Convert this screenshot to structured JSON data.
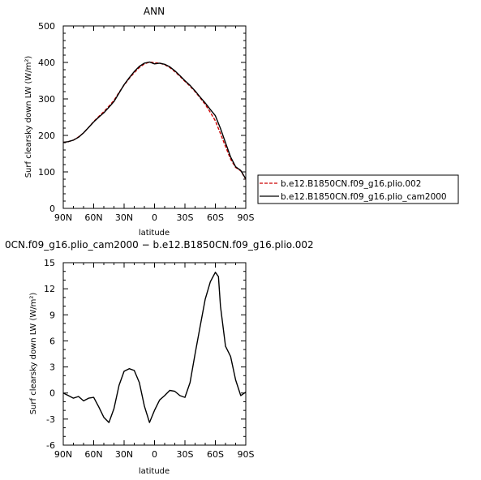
{
  "chart_data": [
    {
      "type": "line",
      "title": "ANN",
      "xlabel": "latitude",
      "ylabel": "Surf clearsky down LW (W/m²)",
      "xlim": [
        90,
        -90
      ],
      "ylim": [
        0,
        500
      ],
      "x_tick_labels": [
        "90N",
        "60N",
        "30N",
        "0",
        "30S",
        "60S",
        "90S"
      ],
      "y_tick_labels": [
        "0",
        "100",
        "200",
        "300",
        "400",
        "500"
      ],
      "legend_position": "right",
      "series": [
        {
          "name": "b.e12.B1850CN.f09_g16.plio.002",
          "color": "#cc0000",
          "style": "dashed",
          "x": [
            90,
            85,
            80,
            75,
            70,
            65,
            60,
            55,
            50,
            45,
            40,
            35,
            30,
            25,
            20,
            15,
            10,
            5,
            0,
            -5,
            -10,
            -15,
            -20,
            -25,
            -30,
            -35,
            -40,
            -45,
            -50,
            -55,
            -60,
            -65,
            -70,
            -75,
            -80,
            -85,
            -90
          ],
          "values": [
            181,
            183,
            187,
            196,
            207,
            222,
            238,
            252,
            265,
            280,
            296,
            318,
            338,
            356,
            372,
            386,
            396,
            401,
            399,
            398,
            394,
            386,
            375,
            362,
            348,
            335,
            320,
            303,
            285,
            263,
            240,
            205,
            170,
            135,
            112,
            103,
            80
          ]
        },
        {
          "name": "b.e12.B1850CN.f09_g16.plio_cam2000",
          "color": "#000000",
          "style": "solid",
          "x": [
            90,
            85,
            80,
            75,
            70,
            65,
            60,
            55,
            50,
            45,
            40,
            35,
            30,
            25,
            20,
            15,
            10,
            5,
            0,
            -5,
            -10,
            -15,
            -20,
            -25,
            -30,
            -35,
            -40,
            -45,
            -50,
            -55,
            -60,
            -65,
            -70,
            -75,
            -80,
            -85,
            -90
          ],
          "values": [
            181,
            183,
            187,
            195,
            207,
            222,
            237,
            250,
            262,
            277,
            293,
            316,
            339,
            358,
            375,
            389,
            398,
            401,
            396,
            398,
            395,
            388,
            377,
            364,
            350,
            337,
            322,
            305,
            289,
            271,
            254,
            219,
            180,
            141,
            114,
            104,
            81
          ]
        }
      ]
    },
    {
      "type": "line",
      "title": "0CN.f09_g16.plio_cam2000 − b.e12.B1850CN.f09_g16.plio.002",
      "xlabel": "latitude",
      "ylabel": "Surf clearsky down LW (W/m²)",
      "xlim": [
        90,
        -90
      ],
      "ylim": [
        -6,
        15
      ],
      "x_tick_labels": [
        "90N",
        "60N",
        "30N",
        "0",
        "30S",
        "60S",
        "90S"
      ],
      "y_tick_labels": [
        "-6",
        "-3",
        "0",
        "3",
        "6",
        "9",
        "12",
        "15"
      ],
      "series": [
        {
          "color": "#000000",
          "style": "solid",
          "x": [
            90,
            85,
            80,
            75,
            70,
            65,
            60,
            55,
            50,
            45,
            40,
            35,
            30,
            25,
            20,
            15,
            10,
            5,
            0,
            -5,
            -10,
            -15,
            -20,
            -25,
            -30,
            -35,
            -40,
            -45,
            -50,
            -55,
            -60,
            -63,
            -65,
            -70,
            -75,
            -80,
            -85,
            -90
          ],
          "values": [
            0,
            -0.3,
            -0.6,
            -0.4,
            -0.9,
            -0.6,
            -0.5,
            -1.6,
            -2.8,
            -3.4,
            -1.8,
            0.9,
            2.5,
            2.8,
            2.6,
            1.2,
            -1.5,
            -3.4,
            -2.0,
            -0.8,
            -0.3,
            0.3,
            0.2,
            -0.3,
            -0.5,
            1.2,
            4.5,
            7.7,
            10.8,
            12.8,
            13.9,
            13.4,
            10.0,
            5.4,
            4.2,
            1.5,
            -0.3,
            0.1
          ]
        }
      ]
    }
  ]
}
